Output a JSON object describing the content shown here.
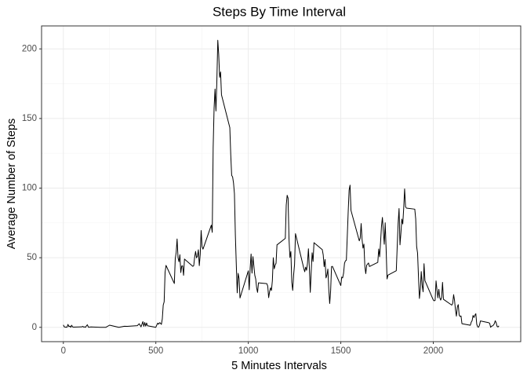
{
  "chart_data": {
    "type": "line",
    "title": "Steps By Time Interval",
    "x_label": "5 Minutes Intervals",
    "y_label": "Average Number of Steps",
    "color": "#000000",
    "grid": true,
    "xlim": [
      -117.75,
      2472.75
    ],
    "xticks": [
      0,
      500,
      1000,
      1500,
      2000
    ],
    "xminor": [
      250,
      750,
      1250,
      1750,
      2250
    ],
    "ylim": [
      -10.3,
      216.5
    ],
    "yticks": [
      0,
      50,
      100,
      150,
      200
    ],
    "yminor": [
      25,
      75,
      125,
      175
    ],
    "x": [
      0,
      5,
      10,
      15,
      20,
      25,
      30,
      35,
      40,
      45,
      50,
      55,
      100,
      105,
      110,
      115,
      120,
      125,
      130,
      135,
      140,
      150,
      200,
      230,
      250,
      300,
      330,
      345,
      400,
      410,
      420,
      430,
      435,
      440,
      445,
      450,
      455,
      500,
      505,
      510,
      515,
      520,
      525,
      530,
      535,
      540,
      545,
      550,
      555,
      600,
      605,
      610,
      615,
      620,
      625,
      630,
      635,
      640,
      645,
      650,
      655,
      700,
      705,
      710,
      715,
      720,
      725,
      730,
      735,
      740,
      745,
      750,
      755,
      800,
      805,
      810,
      815,
      820,
      825,
      830,
      835,
      840,
      845,
      850,
      855,
      900,
      905,
      910,
      915,
      920,
      925,
      930,
      935,
      940,
      945,
      950,
      955,
      1000,
      1005,
      1010,
      1015,
      1020,
      1025,
      1030,
      1035,
      1040,
      1045,
      1050,
      1055,
      1100,
      1105,
      1110,
      1115,
      1120,
      1125,
      1130,
      1135,
      1140,
      1145,
      1150,
      1155,
      1200,
      1205,
      1210,
      1215,
      1220,
      1225,
      1230,
      1235,
      1240,
      1245,
      1250,
      1255,
      1300,
      1305,
      1310,
      1315,
      1320,
      1325,
      1330,
      1335,
      1340,
      1345,
      1350,
      1355,
      1400,
      1405,
      1410,
      1415,
      1420,
      1425,
      1430,
      1435,
      1440,
      1445,
      1450,
      1455,
      1500,
      1505,
      1510,
      1515,
      1520,
      1525,
      1530,
      1535,
      1540,
      1545,
      1550,
      1555,
      1600,
      1605,
      1610,
      1615,
      1620,
      1625,
      1630,
      1635,
      1640,
      1645,
      1650,
      1655,
      1700,
      1705,
      1710,
      1715,
      1720,
      1725,
      1730,
      1735,
      1740,
      1745,
      1750,
      1755,
      1800,
      1805,
      1810,
      1815,
      1820,
      1825,
      1830,
      1835,
      1840,
      1845,
      1850,
      1855,
      1900,
      1905,
      1910,
      1915,
      1920,
      1925,
      1930,
      1935,
      1940,
      1945,
      1950,
      1955,
      2000,
      2005,
      2010,
      2015,
      2020,
      2025,
      2030,
      2035,
      2040,
      2045,
      2050,
      2055,
      2100,
      2105,
      2110,
      2115,
      2120,
      2125,
      2130,
      2135,
      2140,
      2145,
      2150,
      2155,
      2200,
      2205,
      2210,
      2215,
      2220,
      2225,
      2230,
      2235,
      2240,
      2245,
      2250,
      2255,
      2300,
      2305,
      2310,
      2315,
      2320,
      2325,
      2330,
      2335,
      2340,
      2345,
      2350,
      2355
    ],
    "values": [
      1.72,
      0.34,
      0.13,
      0.15,
      0.08,
      2.09,
      0.53,
      0.87,
      0,
      1.47,
      0.3,
      0.13,
      0.32,
      0.68,
      0.15,
      0.34,
      0,
      1.11,
      1.83,
      0.17,
      0.17,
      0.26,
      0,
      0,
      1.55,
      0,
      0.75,
      0.7,
      1.19,
      2.57,
      0.34,
      4.11,
      0.66,
      3.49,
      0.83,
      3.11,
      1.11,
      0,
      1.58,
      3.0,
      2.25,
      3.32,
      2.96,
      2.09,
      6.05,
      16.02,
      18.34,
      39.45,
      44.49,
      31.49,
      49.26,
      53.77,
      63.45,
      49.96,
      47.08,
      52.15,
      39.34,
      44.02,
      44.17,
      37.36,
      49.04,
      43.81,
      44.38,
      50.51,
      54.51,
      49.92,
      50.98,
      55.68,
      44.32,
      52.26,
      69.55,
      57.85,
      56.15,
      73.38,
      68.21,
      129.43,
      157.53,
      171.15,
      155.4,
      177.3,
      206.17,
      195.92,
      179.57,
      183.4,
      167.02,
      143.45,
      124.04,
      109.11,
      108.11,
      103.72,
      95.97,
      66.21,
      45.23,
      24.79,
      38.75,
      34.98,
      21.06,
      40.57,
      26.98,
      42.42,
      52.66,
      38.92,
      50.79,
      44.28,
      37.42,
      34.7,
      28.34,
      25.09,
      31.94,
      31.36,
      29.68,
      21.32,
      25.55,
      28.38,
      26.47,
      33.43,
      49.98,
      42.04,
      44.6,
      46.04,
      59.19,
      63.87,
      87.7,
      94.85,
      92.77,
      63.4,
      50.17,
      54.47,
      32.42,
      26.53,
      37.74,
      45.06,
      67.28,
      42.34,
      39.89,
      43.26,
      40.98,
      46.25,
      56.43,
      42.75,
      25.13,
      39.96,
      53.55,
      47.32,
      60.81,
      55.75,
      51.96,
      43.58,
      48.7,
      35.47,
      37.55,
      41.85,
      27.51,
      17.11,
      26.08,
      43.62,
      43.77,
      30.02,
      36.08,
      35.49,
      38.85,
      45.96,
      47.75,
      48.13,
      65.32,
      82.91,
      98.66,
      102.11,
      83.96,
      62.13,
      64.13,
      74.55,
      63.17,
      56.91,
      59.77,
      43.87,
      38.57,
      44.66,
      45.45,
      46.21,
      43.68,
      46.62,
      56.3,
      50.72,
      61.23,
      72.72,
      78.94,
      68.94,
      59.66,
      75.09,
      56.51,
      34.77,
      37.45,
      40.68,
      58.02,
      74.7,
      85.32,
      59.26,
      67.77,
      77.7,
      74.25,
      85.34,
      99.45,
      86.58,
      85.6,
      84.87,
      77.83,
      58.04,
      53.36,
      36.33,
      20.72,
      27.4,
      40.02,
      30.21,
      25.55,
      45.66,
      33.53,
      19.62,
      19.02,
      19.34,
      33.34,
      26.81,
      21.17,
      27.3,
      21.34,
      19.55,
      21.32,
      32.3,
      20.15,
      15.94,
      17.23,
      23.45,
      19.25,
      12.45,
      8.02,
      14.66,
      16.3,
      8.68,
      7.79,
      8.13,
      2.62,
      1.45,
      3.68,
      4.81,
      8.51,
      7.08,
      8.7,
      9.75,
      2.21,
      0.32,
      0.11,
      1.6,
      4.6,
      3.3,
      2.85,
      0,
      0.83,
      0.96,
      1.58,
      2.6,
      4.7,
      3.3,
      0.64,
      0.23,
      1.08
    ]
  }
}
